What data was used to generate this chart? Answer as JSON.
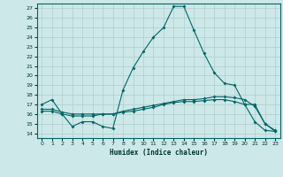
{
  "title": "",
  "xlabel": "Humidex (Indice chaleur)",
  "background_color": "#cde8e8",
  "grid_color": "#b0cccc",
  "line_color": "#006666",
  "xlim": [
    -0.5,
    23.5
  ],
  "ylim": [
    13.5,
    27.5
  ],
  "xticks": [
    0,
    1,
    2,
    3,
    4,
    5,
    6,
    7,
    8,
    9,
    10,
    11,
    12,
    13,
    14,
    15,
    16,
    17,
    18,
    19,
    20,
    21,
    22,
    23
  ],
  "yticks": [
    14,
    15,
    16,
    17,
    18,
    19,
    20,
    21,
    22,
    23,
    24,
    25,
    26,
    27
  ],
  "line1_x": [
    0,
    1,
    2,
    3,
    4,
    5,
    6,
    7,
    8,
    9,
    10,
    11,
    12,
    13,
    14,
    15,
    16,
    17,
    18,
    19,
    20,
    21,
    22,
    23
  ],
  "line1_y": [
    17.0,
    17.5,
    16.0,
    14.7,
    15.2,
    15.2,
    14.7,
    14.5,
    18.5,
    20.8,
    22.5,
    24.0,
    25.0,
    27.2,
    27.2,
    24.7,
    22.3,
    20.3,
    19.2,
    19.0,
    17.0,
    15.2,
    14.3,
    14.2
  ],
  "line2_x": [
    0,
    1,
    2,
    3,
    4,
    5,
    6,
    7,
    8,
    9,
    10,
    11,
    12,
    13,
    14,
    15,
    16,
    17,
    18,
    19,
    20,
    21,
    22,
    23
  ],
  "line2_y": [
    16.3,
    16.3,
    16.0,
    15.8,
    15.8,
    15.8,
    16.0,
    16.0,
    16.2,
    16.3,
    16.5,
    16.7,
    17.0,
    17.2,
    17.3,
    17.3,
    17.4,
    17.5,
    17.5,
    17.3,
    17.0,
    17.0,
    15.0,
    14.2
  ],
  "line3_x": [
    0,
    1,
    2,
    3,
    4,
    5,
    6,
    7,
    8,
    9,
    10,
    11,
    12,
    13,
    14,
    15,
    16,
    17,
    18,
    19,
    20,
    21,
    22,
    23
  ],
  "line3_y": [
    16.5,
    16.5,
    16.2,
    16.0,
    16.0,
    16.0,
    16.0,
    16.0,
    16.3,
    16.5,
    16.7,
    16.9,
    17.1,
    17.3,
    17.5,
    17.5,
    17.6,
    17.8,
    17.8,
    17.7,
    17.5,
    16.8,
    15.0,
    14.3
  ]
}
